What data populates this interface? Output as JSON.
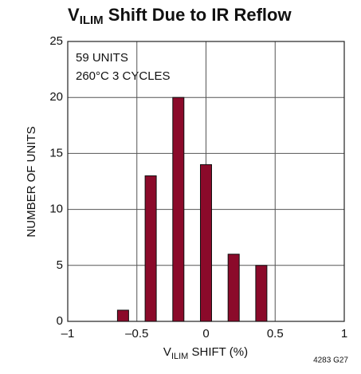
{
  "chart_data": {
    "type": "bar",
    "title": {
      "main": "V",
      "sub": "ILIM",
      "rest": " Shift Due to IR Reflow"
    },
    "x_label": {
      "main": "V",
      "sub": "ILIM",
      "rest": " SHIFT (%)"
    },
    "y_label": "NUMBER OF UNITS",
    "annotations": [
      "59 UNITS",
      "260°C 3 CYCLES"
    ],
    "footnote": "4283 G27",
    "x": [
      -0.6,
      -0.4,
      -0.2,
      0,
      0.2,
      0.4
    ],
    "values": [
      1,
      13,
      20,
      14,
      6,
      5
    ],
    "color": "#8b0a2a",
    "xlim": [
      -1,
      1
    ],
    "xticks": [
      {
        "value": -1,
        "label": "–1"
      },
      {
        "value": -0.5,
        "label": "–0.5"
      },
      0,
      0.5,
      1
    ],
    "ylim": [
      0,
      25
    ],
    "yticks": [
      0,
      5,
      10,
      15,
      20,
      25
    ],
    "grid": true
  }
}
